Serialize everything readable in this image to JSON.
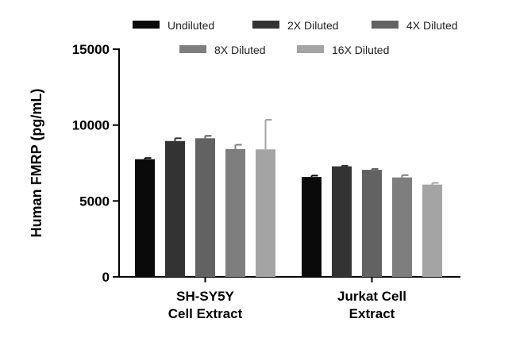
{
  "chart_data": {
    "type": "bar",
    "ylabel": "Human FMRP (pg/mL)",
    "xlabel": "",
    "ylim": [
      0,
      15000
    ],
    "yticks": [
      0,
      5000,
      10000,
      15000
    ],
    "categories": [
      [
        "SH-SY5Y",
        "Cell Extract"
      ],
      [
        "Jurkat Cell",
        "Extract"
      ]
    ],
    "series": [
      {
        "name": "Undiluted",
        "color": "#0a0a0a",
        "values": [
          7750,
          6580
        ],
        "errors": [
          80,
          90
        ]
      },
      {
        "name": "2X Diluted",
        "color": "#333333",
        "values": [
          8950,
          7280
        ],
        "errors": [
          180,
          40
        ]
      },
      {
        "name": "4X Diluted",
        "color": "#626262",
        "values": [
          9130,
          7050
        ],
        "errors": [
          160,
          60
        ]
      },
      {
        "name": "8X Diluted",
        "color": "#7e7e7e",
        "values": [
          8420,
          6550
        ],
        "errors": [
          280,
          150
        ]
      },
      {
        "name": "16X Diluted",
        "color": "#a4a4a4",
        "values": [
          8400,
          6080
        ],
        "errors": [
          1950,
          110
        ]
      }
    ],
    "legend_placement": "top",
    "grid": false
  }
}
